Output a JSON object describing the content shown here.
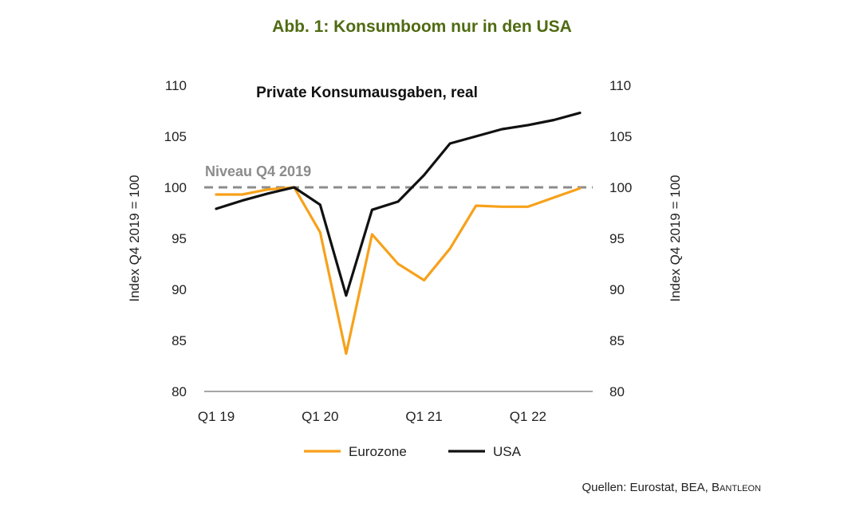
{
  "figure": {
    "title": "Abb. 1: Konsumboom nur in den USA",
    "source_prefix": "Quellen: Eurostat, BEA, ",
    "source_brand": "Bantleon"
  },
  "chart_data": {
    "type": "line",
    "title": "Private Konsumausgaben,  real",
    "ylabel_left": "Index Q4 2019 = 100",
    "ylabel_right": "Index Q4 2019 = 100",
    "ylim": [
      80,
      110
    ],
    "yticks": [
      80,
      85,
      90,
      95,
      100,
      105,
      110
    ],
    "x": [
      "Q1 19",
      "Q2 19",
      "Q3 19",
      "Q4 19",
      "Q1 20",
      "Q2 20",
      "Q3 20",
      "Q4 20",
      "Q1 21",
      "Q2 21",
      "Q3 21",
      "Q4 21",
      "Q1 22",
      "Q2 22",
      "Q3 22"
    ],
    "xtick_labels": [
      "Q1 19",
      "Q1 20",
      "Q1 21",
      "Q1 22"
    ],
    "reference_line": {
      "label": "Niveau Q4 2019",
      "value": 100
    },
    "series": [
      {
        "name": "Eurozone",
        "color": "#f7a11a",
        "values": [
          99.3,
          99.3,
          99.8,
          100.0,
          95.6,
          83.7,
          95.4,
          92.5,
          90.9,
          94.0,
          98.2,
          98.1,
          98.1,
          99.0,
          99.9
        ]
      },
      {
        "name": "USA",
        "color": "#111111",
        "values": [
          97.9,
          98.7,
          99.4,
          100.0,
          98.3,
          89.4,
          97.8,
          98.6,
          101.2,
          104.3,
          105.0,
          105.7,
          106.1,
          106.6,
          107.3
        ]
      }
    ],
    "legend_position": "bottom-center",
    "grid": false
  }
}
